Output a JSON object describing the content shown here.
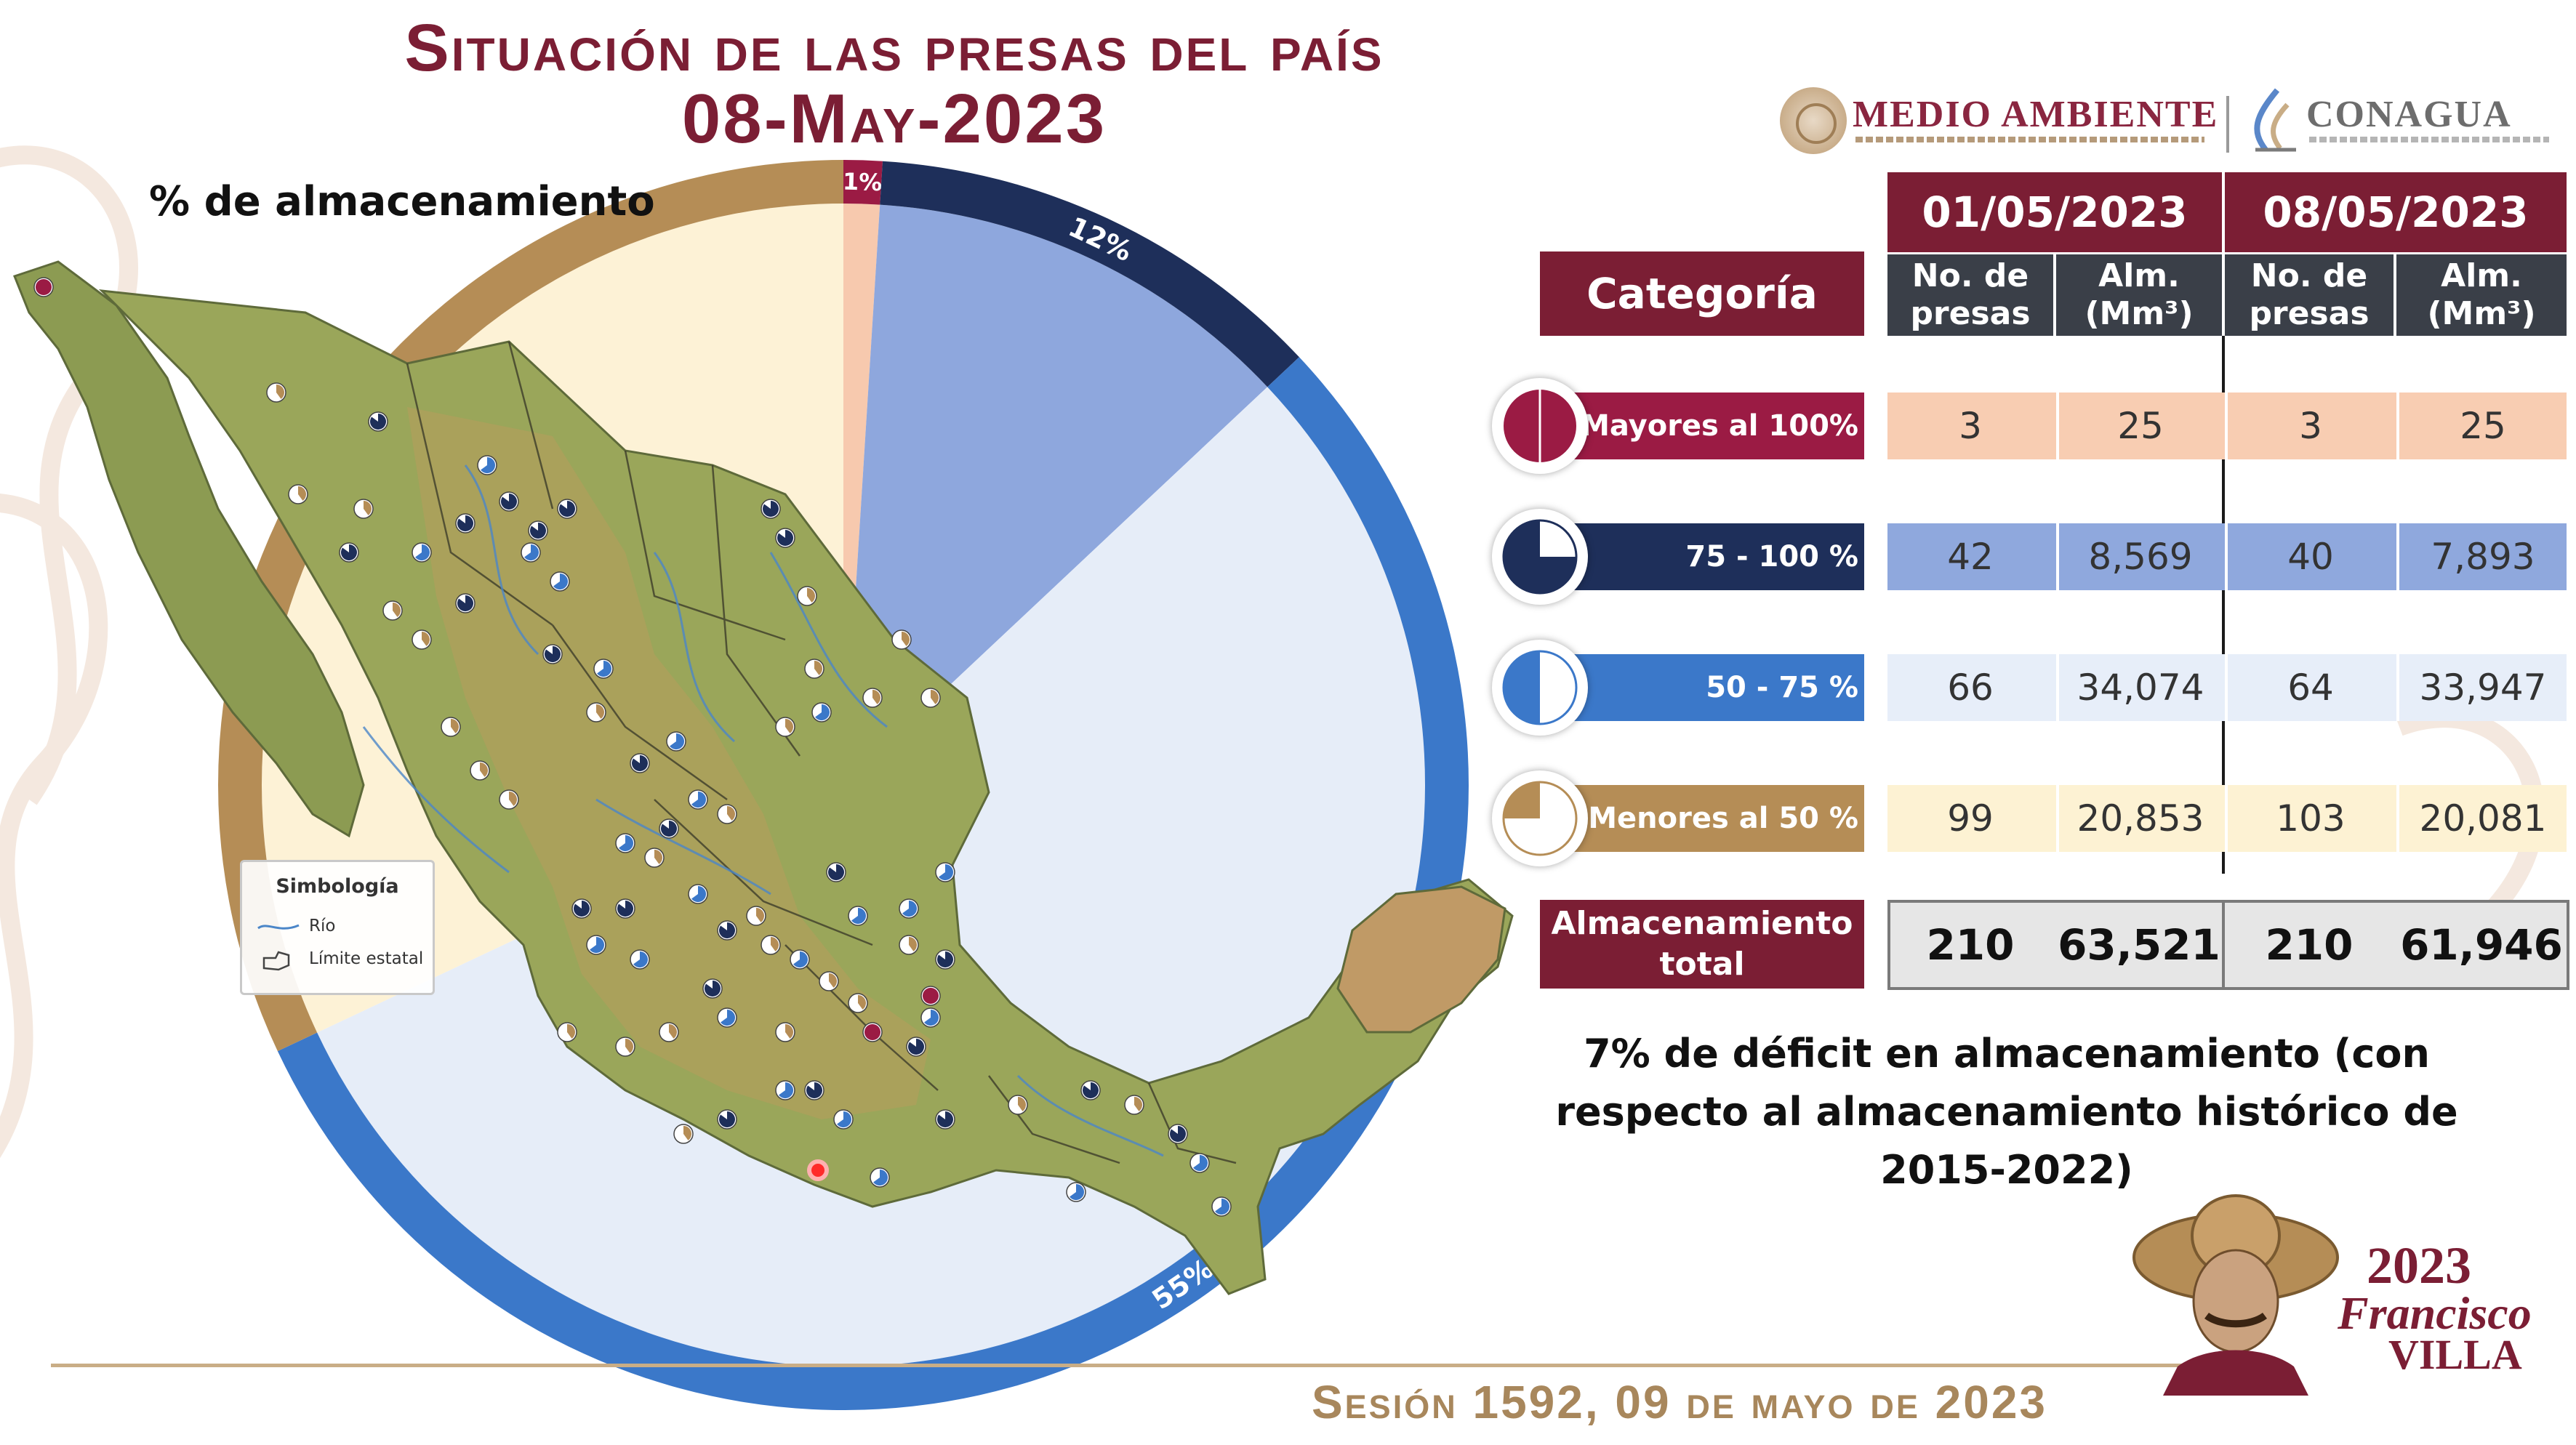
{
  "header": {
    "title_line1": "Situación de las presas del país",
    "title_line2": "08-May-2023"
  },
  "logos": {
    "medio_ambiente": "MEDIO AMBIENTE",
    "conagua": "CONAGUA",
    "villa_year": "2023",
    "villa_name1": "Francisco",
    "villa_name2": "VILLA"
  },
  "map": {
    "legend_title": "Simbología",
    "legend_river": "Río",
    "legend_border": "Límite estatal"
  },
  "colors": {
    "mayores_100": "#9b1b44",
    "rango_75_100": "#1e2f5a",
    "rango_50_75": "#3b78c9",
    "menores_50": "#b58d56",
    "accent_maroon": "#7b1e34"
  },
  "chart_data": {
    "type": "pie",
    "title": "% de almacenamiento",
    "labels": [
      "Mayores al 100%",
      "75 - 100 %",
      "50 - 75 %",
      "Menores al 50 %"
    ],
    "values": [
      1,
      12,
      55,
      32
    ],
    "value_labels": [
      "1%",
      "12%",
      "55%",
      "32%"
    ],
    "colors": [
      "#9b1b44",
      "#1e2f5a",
      "#3b78c9",
      "#b58d56"
    ],
    "inner_colors": [
      "#f7c9ae",
      "#8ea7dd",
      "#e6edf8",
      "#fdf2d6"
    ]
  },
  "table": {
    "category_header": "Categoría",
    "dates": [
      "01/05/2023",
      "08/05/2023"
    ],
    "sub_headers": [
      "No. de presas",
      "Alm. (Mm³)",
      "No. de presas",
      "Alm. (Mm³)"
    ],
    "rows": [
      {
        "label": "Mayores al 100%",
        "values": [
          "3",
          "25",
          "3",
          "25"
        ],
        "row_color": "#f8cdb2",
        "bar_color": "#9b1b44"
      },
      {
        "label": "75 - 100 %",
        "values": [
          "42",
          "8,569",
          "40",
          "7,893"
        ],
        "row_color": "#8fa8dd",
        "bar_color": "#1e2f5a"
      },
      {
        "label": "50 - 75 %",
        "values": [
          "66",
          "34,074",
          "64",
          "33,947"
        ],
        "row_color": "#e7eef9",
        "bar_color": "#3b78c9"
      },
      {
        "label": "Menores al 50 %",
        "values": [
          "99",
          "20,853",
          "103",
          "20,081"
        ],
        "row_color": "#fdf2d3",
        "bar_color": "#b58d56"
      }
    ],
    "total_label": "Almacenamiento total",
    "total_values": [
      "210",
      "63,521",
      "210",
      "61,946"
    ]
  },
  "deficit_text": "7% de déficit en almacenamiento (con respecto al almacenamiento histórico de 2015-2022)",
  "footer": {
    "session": "Sesión 1592, 09 de mayo de 2023"
  }
}
